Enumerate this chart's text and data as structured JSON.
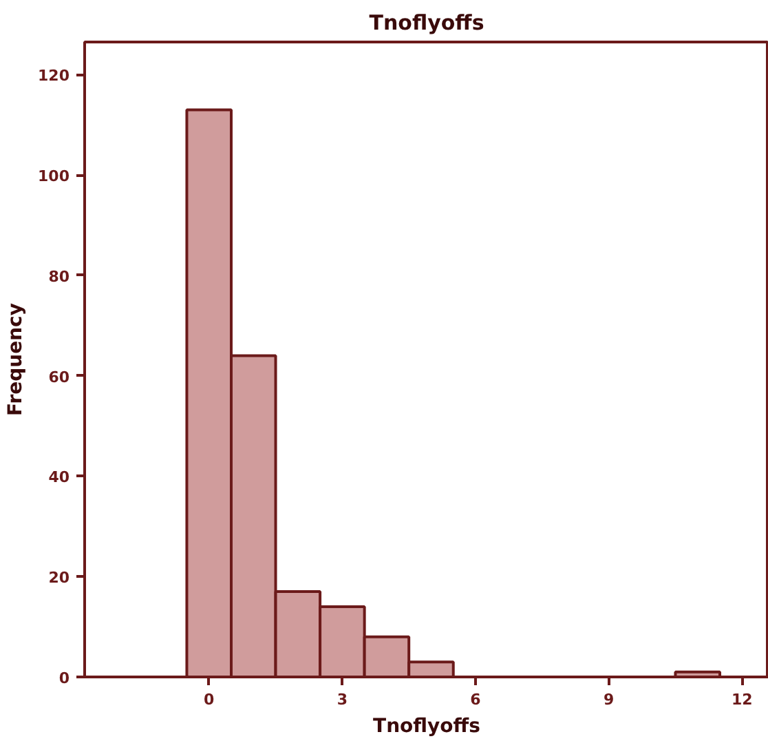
{
  "chart_data": {
    "type": "histogram",
    "title": "Tnoflyoffs",
    "xlabel": "Tnoflyoffs",
    "ylabel": "Frequency",
    "bins": [
      -0.5,
      0.5,
      1.5,
      2.5,
      3.5,
      4.5,
      5.5,
      6.5,
      7.5,
      8.5,
      9.5,
      10.5,
      11.5
    ],
    "values": [
      113,
      64,
      17,
      14,
      8,
      3,
      0,
      0,
      0,
      0,
      0,
      1
    ],
    "color": "#d09c9c",
    "xlim": [
      -2.8,
      12.6
    ],
    "ylim": [
      0,
      126.5
    ],
    "xticks": [
      0,
      3,
      6,
      9,
      12
    ],
    "yticks": [
      0,
      20,
      40,
      60,
      80,
      100,
      120
    ],
    "grid": false
  }
}
